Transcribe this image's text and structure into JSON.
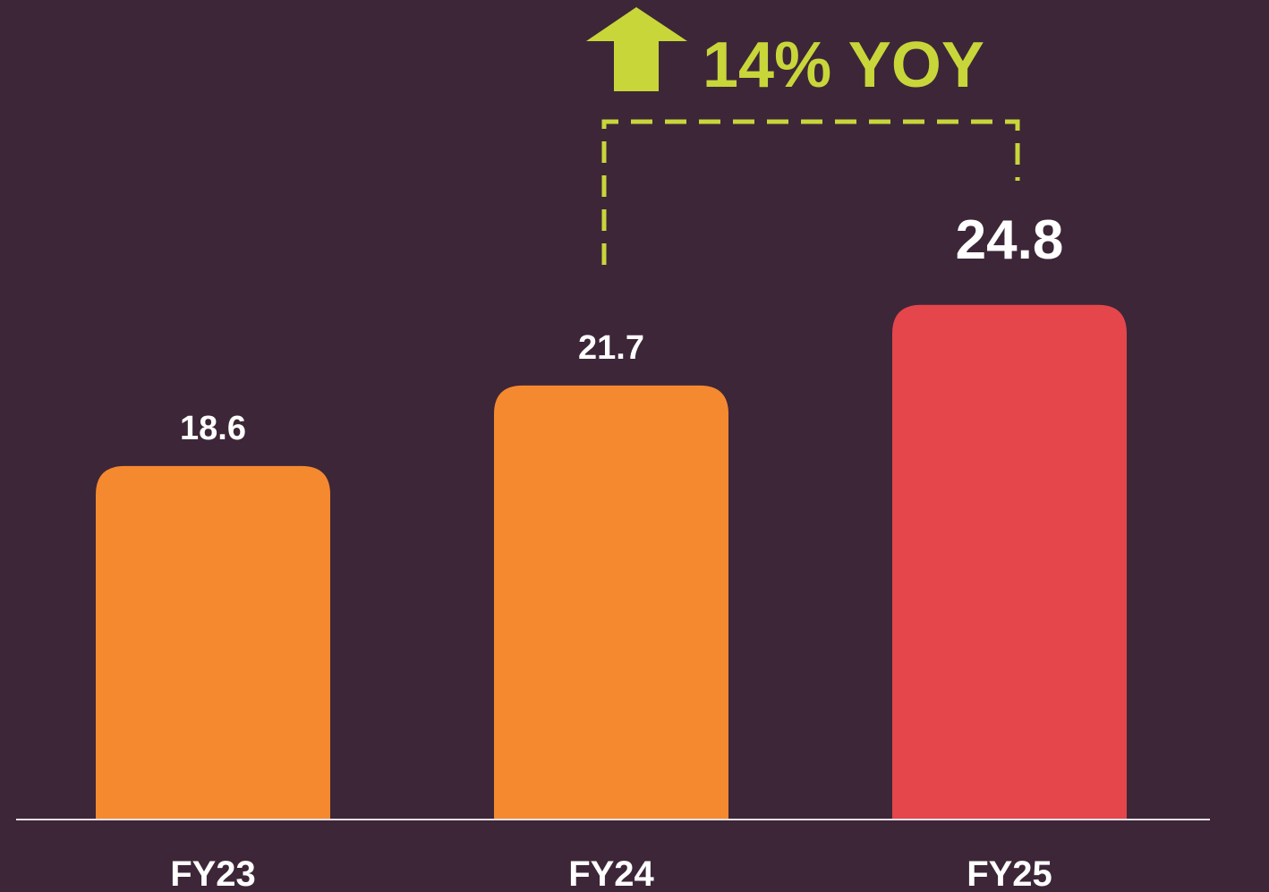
{
  "chart_data": {
    "type": "bar",
    "categories": [
      "FY23",
      "FY24",
      "FY25"
    ],
    "values": [
      18.6,
      21.7,
      24.8
    ],
    "colors": [
      "#f5892f",
      "#f5892f",
      "#e4464b"
    ],
    "ylim": [
      5,
      25
    ],
    "annotation": "14% YOY",
    "annotation_color": "#c8d63a"
  }
}
